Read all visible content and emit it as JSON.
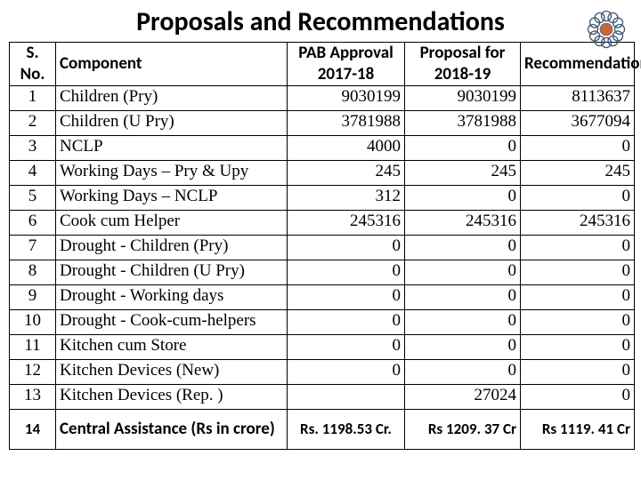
{
  "title": "Proposals and Recommendations",
  "columns": {
    "sn": "S. No.",
    "component": "Component",
    "pab": "PAB Approval 2017-18",
    "proposal": "Proposal for 2018-19",
    "recommendation": "Recommendation"
  },
  "rows": [
    {
      "sn": "1",
      "component": "Children (Pry)",
      "pab": "9030199",
      "proposal": "9030199",
      "rec": "8113637"
    },
    {
      "sn": "2",
      "component": "Children (U Pry)",
      "pab": "3781988",
      "proposal": "3781988",
      "rec": "3677094"
    },
    {
      "sn": "3",
      "component": "NCLP",
      "pab": "4000",
      "proposal": "0",
      "rec": "0"
    },
    {
      "sn": "4",
      "component": "Working Days – Pry & Upy",
      "pab": "245",
      "proposal": "245",
      "rec": "245"
    },
    {
      "sn": "5",
      "component": "Working Days – NCLP",
      "pab": "312",
      "proposal": "0",
      "rec": "0"
    },
    {
      "sn": "6",
      "component": "Cook cum Helper",
      "pab": "245316",
      "proposal": "245316",
      "rec": "245316"
    },
    {
      "sn": "7",
      "component": "Drought  - Children (Pry)",
      "pab": "0",
      "proposal": "0",
      "rec": "0"
    },
    {
      "sn": "8",
      "component": "Drought  - Children (U Pry)",
      "pab": "0",
      "proposal": "0",
      "rec": "0"
    },
    {
      "sn": "9",
      "component": "Drought  - Working days",
      "pab": "0",
      "proposal": "0",
      "rec": "0"
    },
    {
      "sn": "10",
      "component": "Drought  - Cook-cum-helpers",
      "pab": "0",
      "proposal": "0",
      "rec": "0"
    },
    {
      "sn": "11",
      "component": "Kitchen cum Store",
      "pab": "0",
      "proposal": "0",
      "rec": "0"
    },
    {
      "sn": "12",
      "component": "Kitchen Devices (New)",
      "pab": "0",
      "proposal": "0",
      "rec": "0"
    },
    {
      "sn": "13",
      "component": "Kitchen Devices (Rep. )",
      "pab": "",
      "proposal": "27024",
      "rec": "0"
    }
  ],
  "footer": {
    "sn": "14",
    "component": "Central Assistance (Rs in crore)",
    "pab": "Rs. 1198.53 Cr.",
    "proposal": "Rs 1209. 37 Cr",
    "rec": "Rs 1119. 41 Cr"
  },
  "logo": {
    "outer_color": "#3b5770",
    "inner_color": "#c7653c"
  }
}
